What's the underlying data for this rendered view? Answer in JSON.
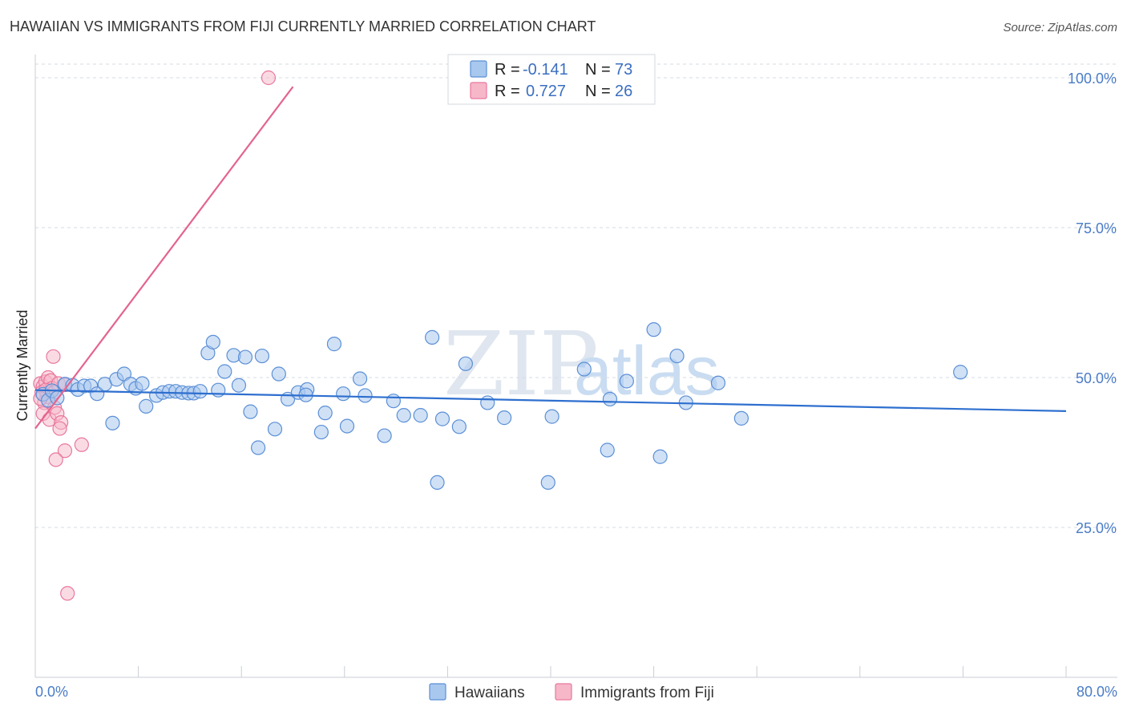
{
  "header": {
    "title": "HAWAIIAN VS IMMIGRANTS FROM FIJI CURRENTLY MARRIED CORRELATION CHART",
    "source": "Source: ZipAtlas.com"
  },
  "watermark": {
    "zip": "ZIP",
    "atlas": "atlas"
  },
  "legend": {
    "r_label": "R =",
    "n_label": "N =",
    "series": [
      {
        "r_value": "-0.141",
        "n_value": "73"
      },
      {
        "r_value": "0.727",
        "n_value": "26"
      }
    ]
  },
  "bottom_legend": {
    "hawaiians": "Hawaiians",
    "fiji": "Immigrants from Fiji"
  },
  "colors": {
    "blue_fill": "#a9c8ee",
    "blue_stroke": "#5b8fd6",
    "blue_line": "#2e6fcf",
    "pink_fill": "#f6b7c9",
    "pink_stroke": "#e9789d",
    "pink_line": "#e4648f",
    "grid": "#d6dbe3",
    "tick_text": "#4a7cc7"
  },
  "chart_data": {
    "type": "scatter",
    "title": "HAWAIIAN VS IMMIGRANTS FROM FIJI CURRENTLY MARRIED CORRELATION CHART",
    "xlabel": "",
    "ylabel": "Currently Married",
    "xlim": [
      0,
      80
    ],
    "ylim": [
      0,
      102
    ],
    "x_tick_labels": [
      "0.0%",
      "80.0%"
    ],
    "y_ticks": [
      25,
      50,
      75,
      100
    ],
    "y_tick_labels": [
      "25.0%",
      "50.0%",
      "75.0%",
      "100.0%"
    ],
    "grid": true,
    "series": [
      {
        "name": "Hawaiians",
        "r": -0.141,
        "n": 73,
        "trend": {
          "x": [
            0,
            80
          ],
          "y": [
            47.9,
            44.4
          ]
        },
        "points": [
          {
            "x": 0.6,
            "y": 47.2
          },
          {
            "x": 1.0,
            "y": 46.2
          },
          {
            "x": 1.3,
            "y": 47.8
          },
          {
            "x": 1.7,
            "y": 46.6
          },
          {
            "x": 2.3,
            "y": 48.9
          },
          {
            "x": 2.9,
            "y": 48.7
          },
          {
            "x": 3.3,
            "y": 48.0
          },
          {
            "x": 3.8,
            "y": 48.6
          },
          {
            "x": 4.3,
            "y": 48.6
          },
          {
            "x": 4.8,
            "y": 47.3
          },
          {
            "x": 5.4,
            "y": 48.9
          },
          {
            "x": 6.0,
            "y": 42.4
          },
          {
            "x": 6.3,
            "y": 49.7
          },
          {
            "x": 6.9,
            "y": 50.6
          },
          {
            "x": 7.4,
            "y": 48.9
          },
          {
            "x": 7.8,
            "y": 48.2
          },
          {
            "x": 8.3,
            "y": 49.0
          },
          {
            "x": 8.6,
            "y": 45.2
          },
          {
            "x": 9.4,
            "y": 47.0
          },
          {
            "x": 9.9,
            "y": 47.5
          },
          {
            "x": 10.4,
            "y": 47.7
          },
          {
            "x": 10.9,
            "y": 47.7
          },
          {
            "x": 11.4,
            "y": 47.5
          },
          {
            "x": 11.9,
            "y": 47.4
          },
          {
            "x": 12.3,
            "y": 47.4
          },
          {
            "x": 12.8,
            "y": 47.7
          },
          {
            "x": 13.4,
            "y": 54.1
          },
          {
            "x": 13.8,
            "y": 55.9
          },
          {
            "x": 14.2,
            "y": 47.9
          },
          {
            "x": 14.7,
            "y": 51.0
          },
          {
            "x": 15.4,
            "y": 53.7
          },
          {
            "x": 15.8,
            "y": 48.7
          },
          {
            "x": 16.3,
            "y": 53.4
          },
          {
            "x": 16.7,
            "y": 44.3
          },
          {
            "x": 17.3,
            "y": 38.3
          },
          {
            "x": 17.6,
            "y": 53.6
          },
          {
            "x": 18.6,
            "y": 41.4
          },
          {
            "x": 18.9,
            "y": 50.6
          },
          {
            "x": 19.6,
            "y": 46.4
          },
          {
            "x": 20.4,
            "y": 47.5
          },
          {
            "x": 21.1,
            "y": 48.0
          },
          {
            "x": 21.0,
            "y": 47.1
          },
          {
            "x": 22.2,
            "y": 40.9
          },
          {
            "x": 22.5,
            "y": 44.1
          },
          {
            "x": 23.2,
            "y": 55.6
          },
          {
            "x": 23.9,
            "y": 47.3
          },
          {
            "x": 24.2,
            "y": 41.9
          },
          {
            "x": 25.2,
            "y": 49.8
          },
          {
            "x": 25.6,
            "y": 47.0
          },
          {
            "x": 27.1,
            "y": 40.3
          },
          {
            "x": 27.8,
            "y": 46.1
          },
          {
            "x": 28.6,
            "y": 43.7
          },
          {
            "x": 29.9,
            "y": 43.7
          },
          {
            "x": 30.8,
            "y": 56.7
          },
          {
            "x": 31.2,
            "y": 32.5
          },
          {
            "x": 31.6,
            "y": 43.1
          },
          {
            "x": 32.9,
            "y": 41.8
          },
          {
            "x": 33.4,
            "y": 52.3
          },
          {
            "x": 35.1,
            "y": 45.8
          },
          {
            "x": 36.4,
            "y": 43.3
          },
          {
            "x": 39.8,
            "y": 32.5
          },
          {
            "x": 40.1,
            "y": 43.5
          },
          {
            "x": 42.6,
            "y": 51.4
          },
          {
            "x": 44.4,
            "y": 37.9
          },
          {
            "x": 44.6,
            "y": 46.4
          },
          {
            "x": 45.9,
            "y": 49.4
          },
          {
            "x": 48.0,
            "y": 58.0
          },
          {
            "x": 48.5,
            "y": 36.8
          },
          {
            "x": 49.8,
            "y": 53.6
          },
          {
            "x": 50.5,
            "y": 45.8
          },
          {
            "x": 53.0,
            "y": 49.1
          },
          {
            "x": 54.8,
            "y": 43.2
          },
          {
            "x": 71.8,
            "y": 50.9
          }
        ]
      },
      {
        "name": "Immigrants from Fiji",
        "r": 0.727,
        "n": 26,
        "trend": {
          "x": [
            0,
            20.0
          ],
          "y": [
            41.5,
            98.5
          ]
        },
        "points": [
          {
            "x": 0.4,
            "y": 49.0
          },
          {
            "x": 0.6,
            "y": 48.5
          },
          {
            "x": 0.8,
            "y": 49.3
          },
          {
            "x": 1.0,
            "y": 50.0
          },
          {
            "x": 1.2,
            "y": 49.5
          },
          {
            "x": 0.5,
            "y": 47.5
          },
          {
            "x": 0.9,
            "y": 46.8
          },
          {
            "x": 1.3,
            "y": 48.2
          },
          {
            "x": 0.7,
            "y": 45.8
          },
          {
            "x": 1.5,
            "y": 45.0
          },
          {
            "x": 0.6,
            "y": 44.0
          },
          {
            "x": 1.1,
            "y": 43.0
          },
          {
            "x": 1.7,
            "y": 44.0
          },
          {
            "x": 2.0,
            "y": 42.5
          },
          {
            "x": 1.9,
            "y": 41.5
          },
          {
            "x": 1.4,
            "y": 53.5
          },
          {
            "x": 1.8,
            "y": 49.0
          },
          {
            "x": 2.3,
            "y": 48.8
          },
          {
            "x": 3.6,
            "y": 38.8
          },
          {
            "x": 2.3,
            "y": 37.8
          },
          {
            "x": 1.6,
            "y": 36.3
          },
          {
            "x": 2.5,
            "y": 14.0
          },
          {
            "x": 18.1,
            "y": 100.0
          },
          {
            "x": 0.8,
            "y": 47.9
          },
          {
            "x": 1.5,
            "y": 47.6
          },
          {
            "x": 0.4,
            "y": 46.5
          }
        ]
      }
    ]
  }
}
